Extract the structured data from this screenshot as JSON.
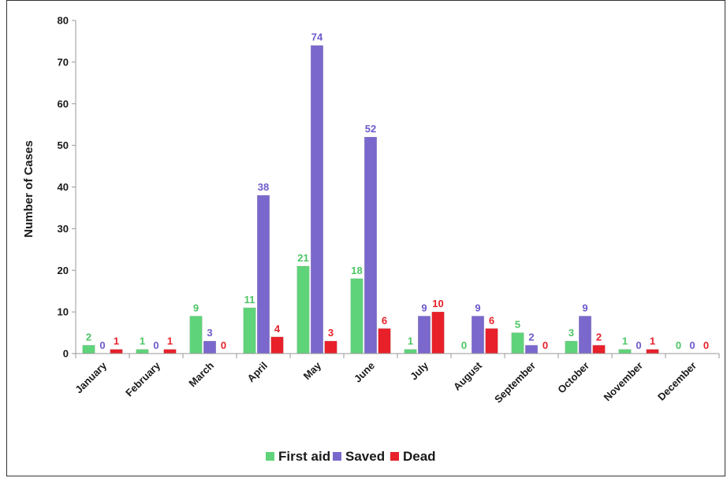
{
  "chart_data": {
    "type": "bar",
    "title": "",
    "xlabel": "",
    "ylabel": "Number of Cases",
    "ylim": [
      0,
      80
    ],
    "yticks": [
      0,
      10,
      20,
      30,
      40,
      50,
      60,
      70,
      80
    ],
    "grid": false,
    "legend_position": "bottom",
    "categories": [
      "January",
      "February",
      "March",
      "April",
      "May",
      "June",
      "July",
      "August",
      "September",
      "October",
      "November",
      "December"
    ],
    "series": [
      {
        "name": "First aid",
        "color": "#5fd37a",
        "label_color": "#4cc564",
        "values": [
          2,
          1,
          9,
          11,
          21,
          18,
          1,
          0,
          5,
          3,
          1,
          0
        ]
      },
      {
        "name": "Saved",
        "color": "#7b68cc",
        "label_color": "#6a5acd",
        "values": [
          0,
          0,
          3,
          38,
          74,
          52,
          9,
          9,
          2,
          9,
          0,
          0
        ]
      },
      {
        "name": "Dead",
        "color": "#e8202a",
        "label_color": "#e8202a",
        "values": [
          1,
          1,
          0,
          4,
          3,
          6,
          10,
          6,
          0,
          2,
          1,
          0
        ]
      }
    ]
  }
}
